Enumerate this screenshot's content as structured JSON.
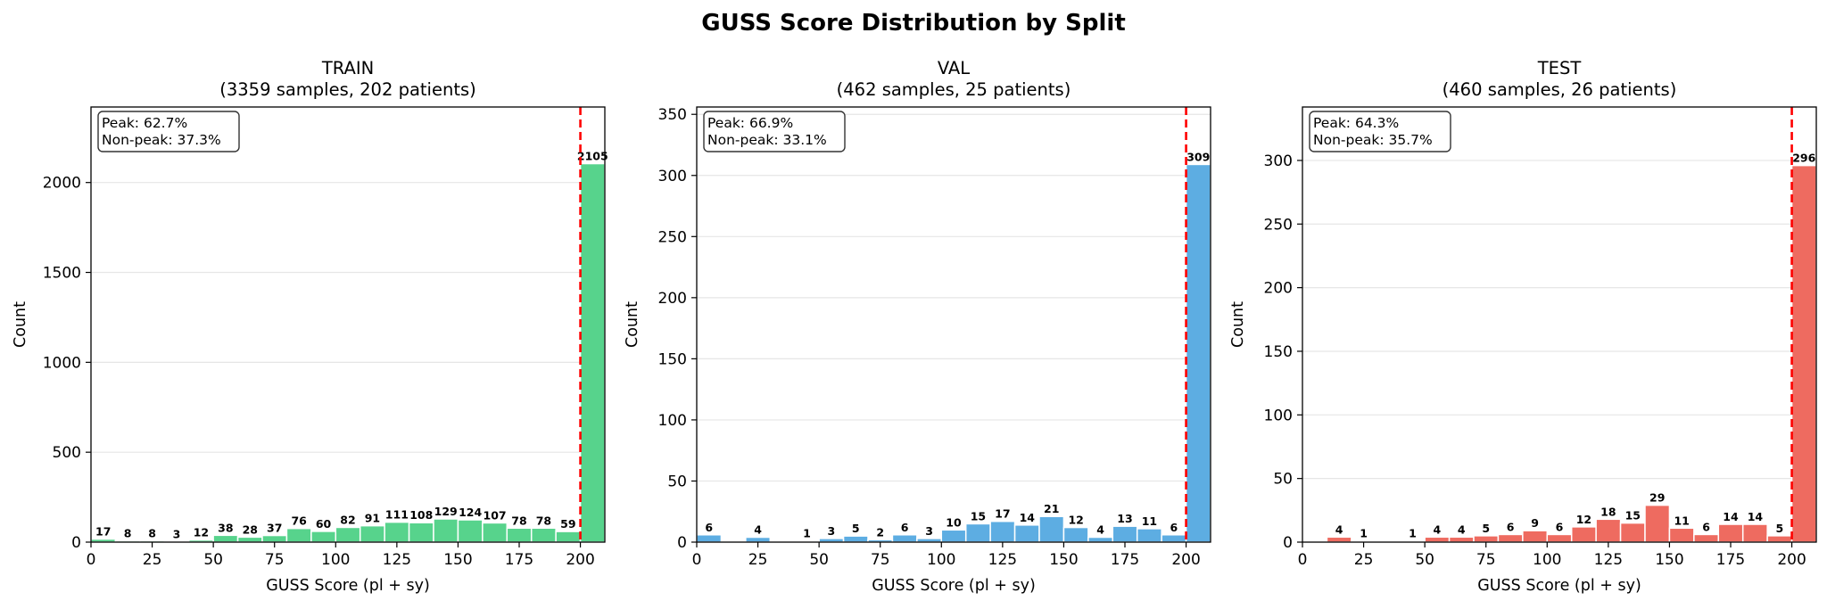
{
  "figure": {
    "title": "GUSS Score Distribution by Split"
  },
  "colors": {
    "train": "#57d38c",
    "val": "#5dade2",
    "test": "#ee6b60",
    "peak_line": "#ff0000",
    "grid": "#e6e6e6"
  },
  "chart_data": [
    {
      "type": "bar",
      "title": "TRAIN",
      "subtitle": "(3359 samples, 202 patients)",
      "xlabel": "GUSS Score (pl + sy)",
      "ylabel": "Count",
      "xlim": [
        0,
        210
      ],
      "ylim": [
        0,
        2420
      ],
      "xticks": [
        0,
        25,
        50,
        75,
        100,
        125,
        150,
        175,
        200
      ],
      "yticks": [
        0,
        500,
        1000,
        1500,
        2000
      ],
      "grid": "horizontal",
      "bin_width": 10,
      "bin_starts": [
        0,
        10,
        20,
        30,
        40,
        50,
        60,
        70,
        80,
        90,
        100,
        110,
        120,
        130,
        140,
        150,
        160,
        170,
        180,
        190,
        200
      ],
      "values": [
        17,
        8,
        8,
        3,
        12,
        38,
        28,
        37,
        76,
        60,
        82,
        91,
        111,
        108,
        129,
        124,
        107,
        78,
        78,
        59,
        2105
      ],
      "peak_line_x": 200,
      "annotation": {
        "peak": "Peak: 62.7%",
        "non_peak": "Non-peak: 37.3%"
      },
      "color_key": "train"
    },
    {
      "type": "bar",
      "title": "VAL",
      "subtitle": "(462 samples, 25 patients)",
      "xlabel": "GUSS Score (pl + sy)",
      "ylabel": "Count",
      "xlim": [
        0,
        210
      ],
      "ylim": [
        0,
        356
      ],
      "xticks": [
        0,
        25,
        50,
        75,
        100,
        125,
        150,
        175,
        200
      ],
      "yticks": [
        0,
        50,
        100,
        150,
        200,
        250,
        300,
        350
      ],
      "grid": "horizontal",
      "bin_width": 10,
      "bin_starts": [
        0,
        10,
        20,
        30,
        40,
        50,
        60,
        70,
        80,
        90,
        100,
        110,
        120,
        130,
        140,
        150,
        160,
        170,
        180,
        190,
        200
      ],
      "values": [
        6,
        0,
        4,
        0,
        1,
        3,
        5,
        2,
        6,
        3,
        10,
        15,
        17,
        14,
        21,
        12,
        4,
        13,
        11,
        6,
        309
      ],
      "peak_line_x": 200,
      "annotation": {
        "peak": "Peak: 66.9%",
        "non_peak": "Non-peak: 33.1%"
      },
      "color_key": "val"
    },
    {
      "type": "bar",
      "title": "TEST",
      "subtitle": "(460 samples, 26 patients)",
      "xlabel": "GUSS Score (pl + sy)",
      "ylabel": "Count",
      "xlim": [
        0,
        210
      ],
      "ylim": [
        0,
        342
      ],
      "xticks": [
        0,
        25,
        50,
        75,
        100,
        125,
        150,
        175,
        200
      ],
      "yticks": [
        0,
        50,
        100,
        150,
        200,
        250,
        300
      ],
      "grid": "horizontal",
      "bin_width": 10,
      "bin_starts": [
        0,
        10,
        20,
        30,
        40,
        50,
        60,
        70,
        80,
        90,
        100,
        110,
        120,
        130,
        140,
        150,
        160,
        170,
        180,
        190,
        200
      ],
      "values": [
        0,
        4,
        1,
        0,
        1,
        4,
        4,
        5,
        6,
        9,
        6,
        12,
        18,
        15,
        29,
        11,
        6,
        14,
        14,
        5,
        296
      ],
      "peak_line_x": 200,
      "annotation": {
        "peak": "Peak: 64.3%",
        "non_peak": "Non-peak: 35.7%"
      },
      "color_key": "test"
    }
  ]
}
